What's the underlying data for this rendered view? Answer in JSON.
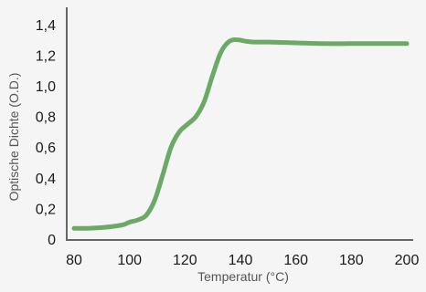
{
  "chart_data": {
    "type": "line",
    "title": "",
    "xlabel": "Temperatur (°C)",
    "ylabel": "Optische Dichte (O.D.)",
    "xlim": [
      80,
      200
    ],
    "ylim": [
      0,
      1.5
    ],
    "x_ticks": [
      "80",
      "100",
      "120",
      "140",
      "160",
      "180",
      "200"
    ],
    "y_ticks": [
      "0",
      "0,2",
      "0,4",
      "0,6",
      "0,8",
      "1,0",
      "1,2",
      "1,4"
    ],
    "grid": false,
    "legend": "none",
    "series": [
      {
        "color": "#6aaa64",
        "x": [
          80,
          85,
          90,
          95,
          98,
          100,
          103,
          106,
          109,
          112,
          115,
          118,
          121,
          124,
          127,
          130,
          133,
          136,
          139,
          142,
          145,
          150,
          160,
          170,
          180,
          190,
          200
        ],
        "y": [
          0.07,
          0.07,
          0.075,
          0.085,
          0.095,
          0.11,
          0.125,
          0.155,
          0.25,
          0.42,
          0.6,
          0.7,
          0.75,
          0.8,
          0.9,
          1.07,
          1.22,
          1.29,
          1.3,
          1.29,
          1.285,
          1.285,
          1.28,
          1.275,
          1.275,
          1.275,
          1.275
        ]
      }
    ]
  }
}
